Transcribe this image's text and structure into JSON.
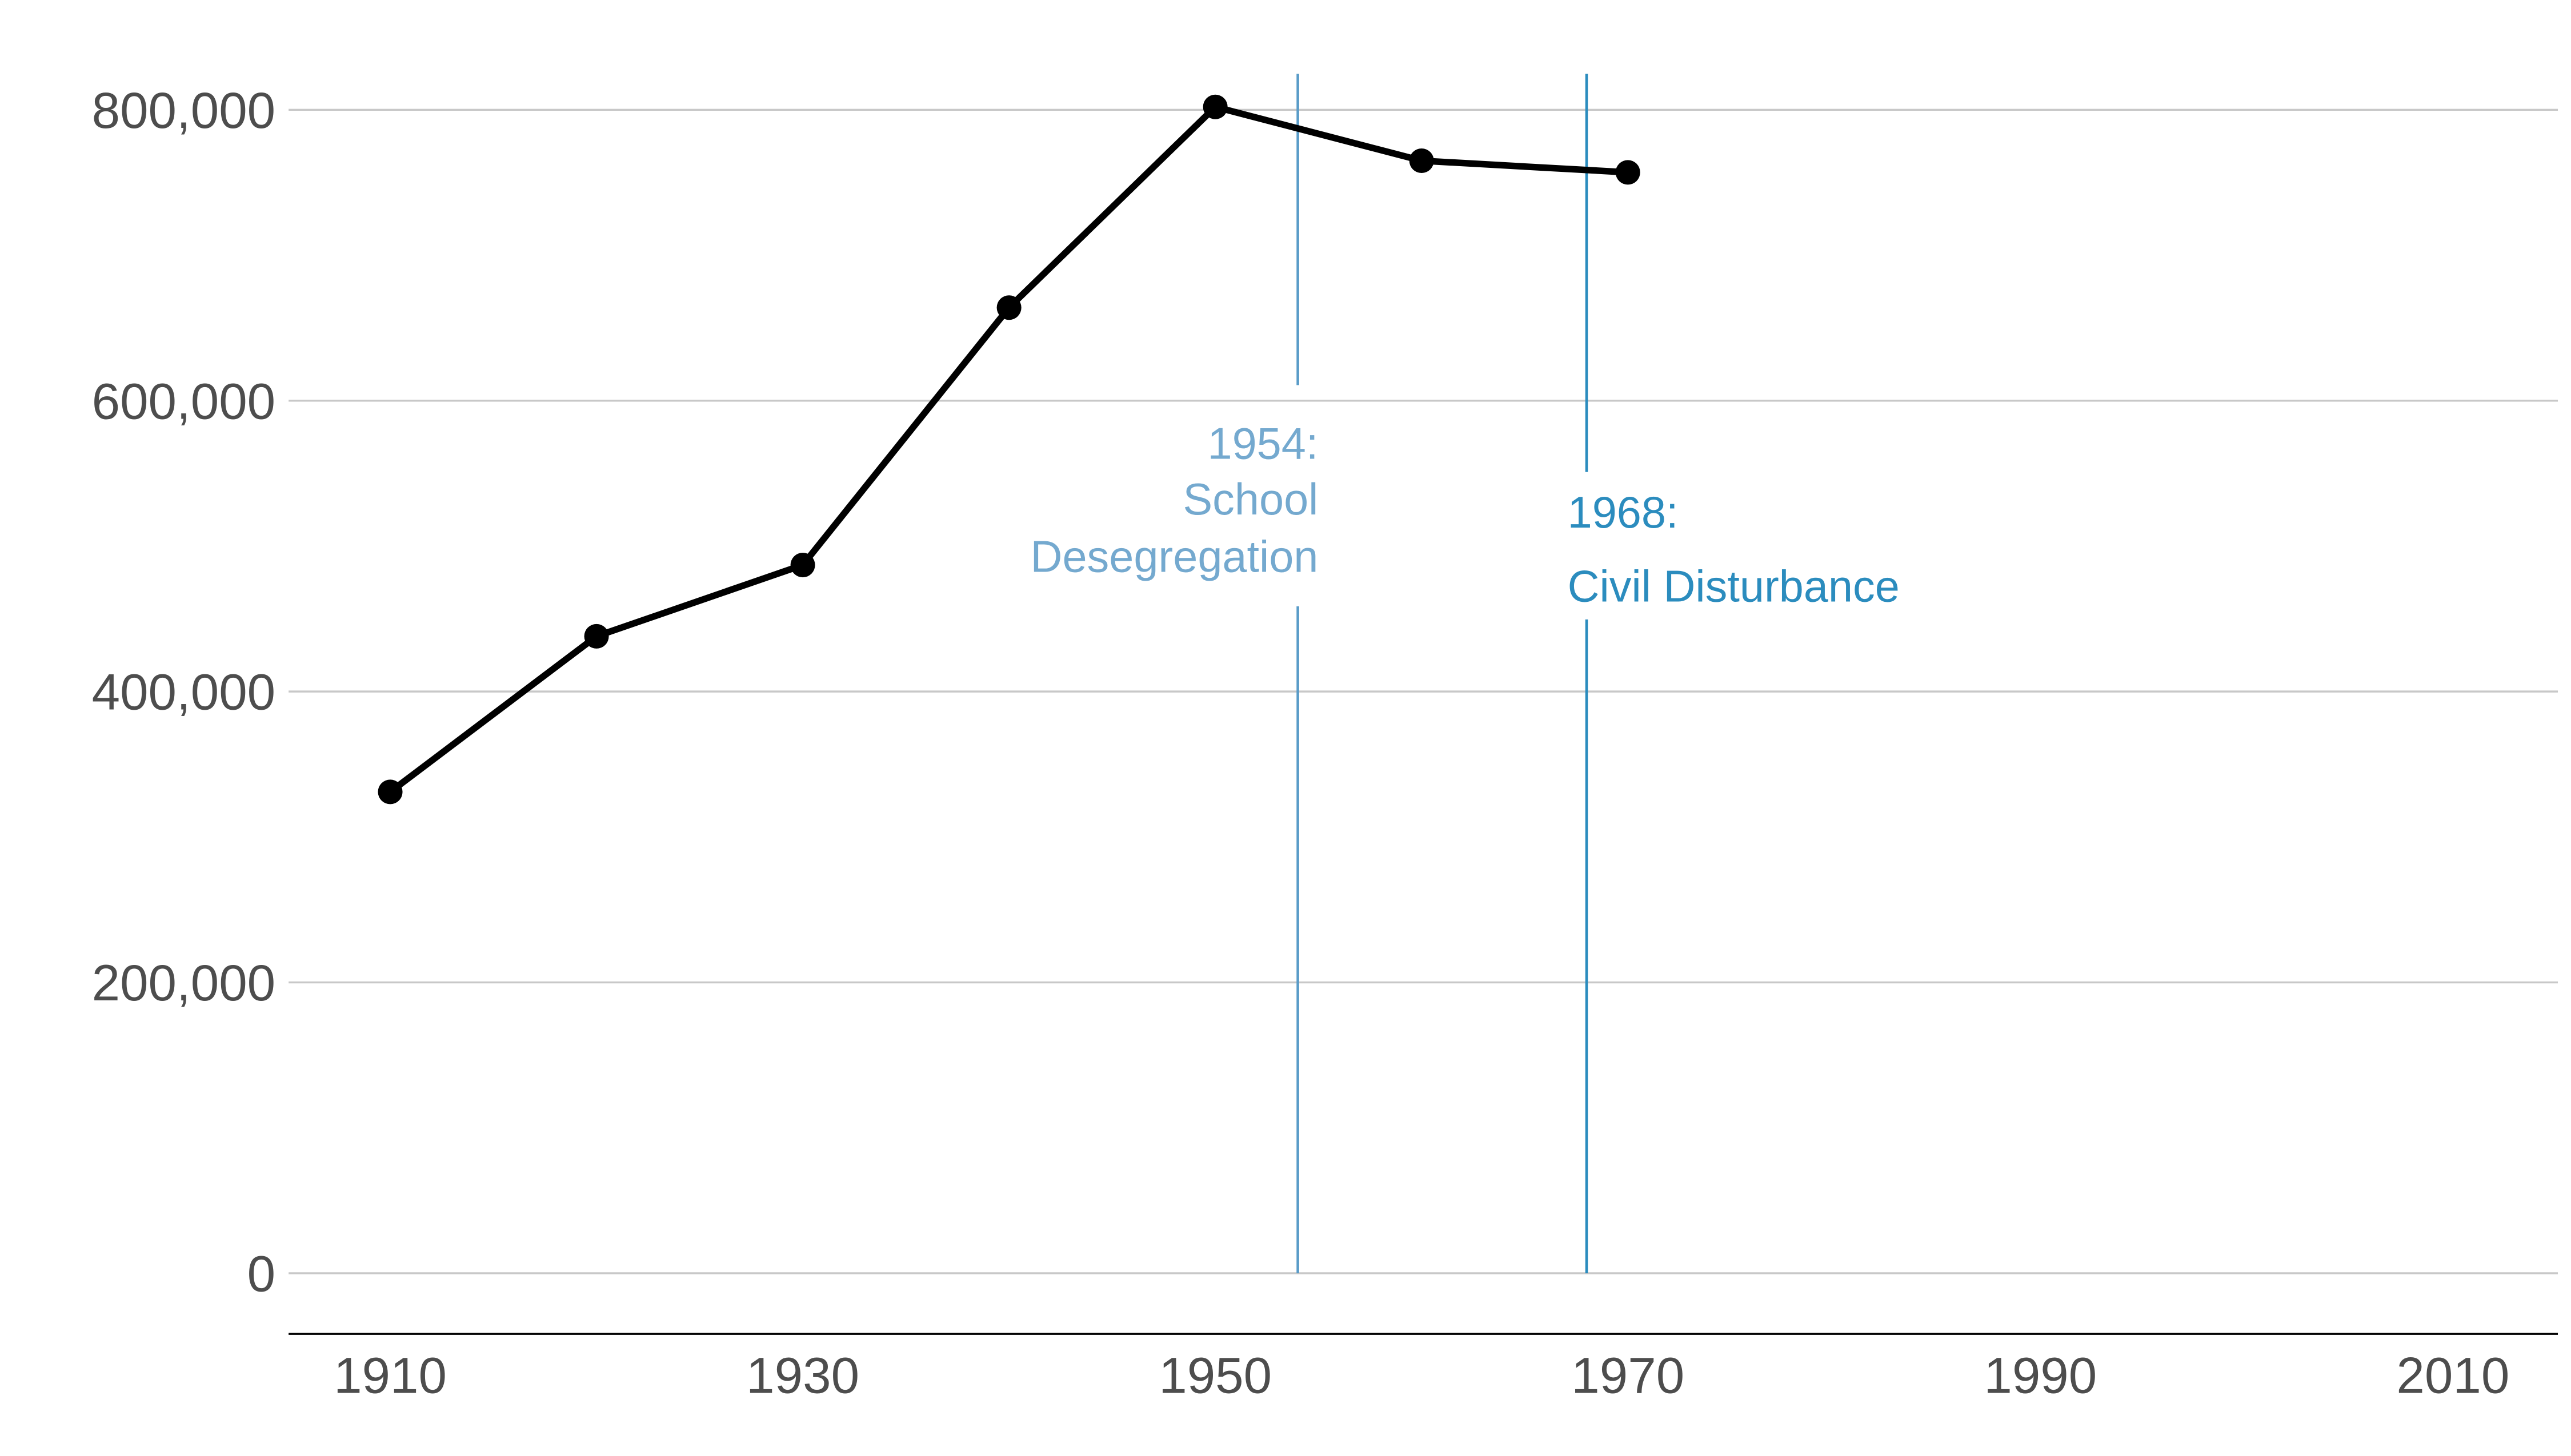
{
  "chart_data": {
    "type": "line",
    "title": "",
    "xlabel": "",
    "ylabel": "",
    "x": [
      1910,
      1920,
      1930,
      1940,
      1950,
      1960,
      1970
    ],
    "series": [
      {
        "values": [
          331000,
          438000,
          487000,
          664000,
          802000,
          765000,
          757000
        ],
        "color": "#000000"
      }
    ],
    "xlim": [
      1905,
      2015
    ],
    "ylim": [
      0,
      800000
    ],
    "x_ticks": [
      "1910",
      "1930",
      "1950",
      "1970",
      "1990",
      "2010"
    ],
    "x_tick_values": [
      1910,
      1930,
      1950,
      1970,
      1990,
      2010
    ],
    "y_ticks": [
      "0",
      "200,000",
      "400,000",
      "600,000",
      "800,000"
    ],
    "y_tick_values": [
      0,
      200000,
      400000,
      600000,
      800000
    ],
    "grid": "horizontal",
    "annotations": [
      {
        "x": 1954,
        "lines": [
          "1954:",
          "School",
          "Desegregation"
        ],
        "color": "#74a9cf",
        "line_color": "#5a9cc8",
        "align": "right"
      },
      {
        "x": 1968,
        "lines": [
          "1968:",
          "Civil Disturbance"
        ],
        "color": "#2b8cbe",
        "line_color": "#2b8cbe",
        "align": "left"
      }
    ]
  }
}
